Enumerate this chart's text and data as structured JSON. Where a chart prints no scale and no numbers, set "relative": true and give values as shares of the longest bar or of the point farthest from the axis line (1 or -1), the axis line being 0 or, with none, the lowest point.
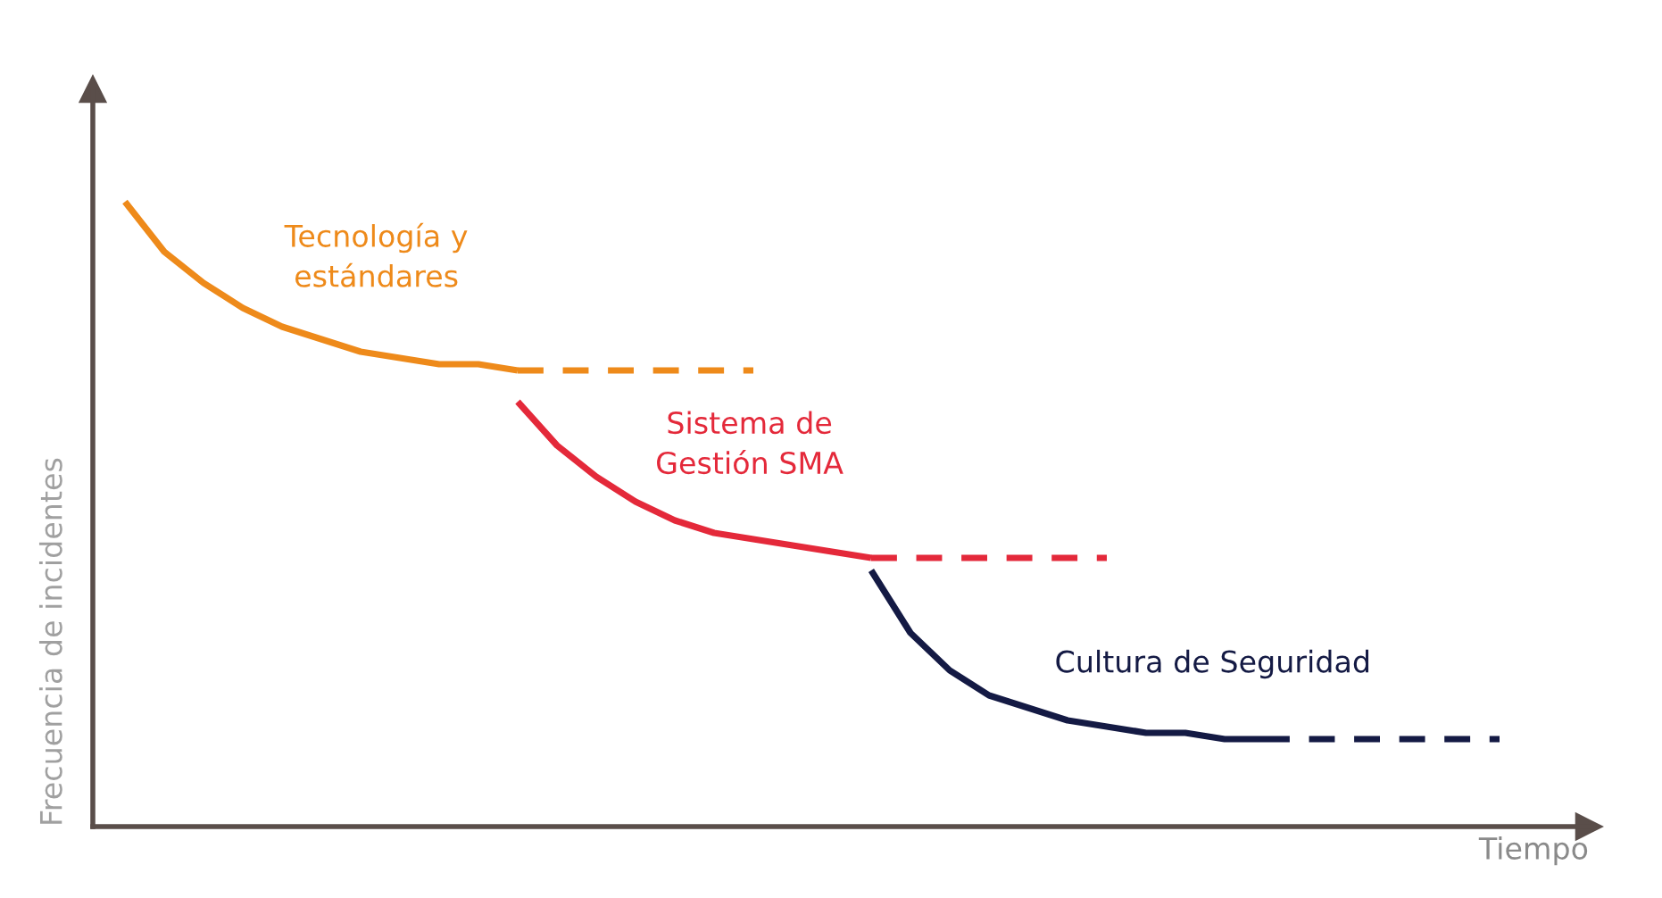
{
  "chart_data": {
    "type": "line",
    "relative": true,
    "xlabel": "Tiempo",
    "ylabel": "Frecuencia de incidentes",
    "categories": [
      null,
      null,
      null,
      null,
      null,
      null,
      null,
      null,
      null,
      null,
      null,
      null,
      null,
      null,
      null,
      null,
      null,
      null,
      null,
      null,
      null,
      null,
      null,
      null,
      null,
      null,
      null,
      null,
      null,
      null,
      null,
      null,
      null,
      null,
      null,
      null
    ],
    "series": [
      {
        "name": "Tecnología y\nestándares",
        "color": "#ee8a1a",
        "line_style": "solid",
        "values": [
          1,
          0.92,
          0.87,
          0.83,
          0.8,
          0.78,
          0.76,
          0.75,
          0.74,
          0.74,
          0.73,
          null,
          null,
          null,
          null,
          null,
          null,
          null,
          null,
          null,
          null,
          null,
          null,
          null,
          null,
          null,
          null,
          null,
          null,
          null,
          null,
          null,
          null,
          null,
          null,
          null
        ]
      },
      {
        "color": "#ee8a1a",
        "line_style": "dashed",
        "values": [
          null,
          null,
          null,
          null,
          null,
          null,
          null,
          null,
          null,
          null,
          0.73,
          0.73,
          0.73,
          0.73,
          0.73,
          0.73,
          0.73,
          null,
          null,
          null,
          null,
          null,
          null,
          null,
          null,
          null,
          null,
          null,
          null,
          null,
          null,
          null,
          null,
          null,
          null,
          null
        ]
      },
      {
        "name": "Sistema de\nGestión SMA",
        "color": "#e4293a",
        "line_style": "solid",
        "values": [
          null,
          null,
          null,
          null,
          null,
          null,
          null,
          null,
          null,
          null,
          0.68,
          0.61,
          0.56,
          0.52,
          0.49,
          0.47,
          0.46,
          0.45,
          0.44,
          0.43,
          null,
          null,
          null,
          null,
          null,
          null,
          null,
          null,
          null,
          null,
          null,
          null,
          null,
          null,
          null,
          null
        ]
      },
      {
        "color": "#e4293a",
        "line_style": "dashed",
        "values": [
          null,
          null,
          null,
          null,
          null,
          null,
          null,
          null,
          null,
          null,
          null,
          null,
          null,
          null,
          null,
          null,
          null,
          null,
          null,
          0.43,
          0.43,
          0.43,
          0.43,
          0.43,
          0.43,
          0.43,
          null,
          null,
          null,
          null,
          null,
          null,
          null,
          null,
          null,
          null
        ]
      },
      {
        "name": "Cultura de Seguridad",
        "color": "#141a44",
        "line_style": "solid",
        "values": [
          null,
          null,
          null,
          null,
          null,
          null,
          null,
          null,
          null,
          null,
          null,
          null,
          null,
          null,
          null,
          null,
          null,
          null,
          null,
          0.41,
          0.31,
          0.25,
          0.21,
          0.19,
          0.17,
          0.16,
          0.15,
          0.15,
          0.14,
          0.14,
          null,
          null,
          null,
          null,
          null,
          null
        ]
      },
      {
        "color": "#141a44",
        "line_style": "dashed",
        "values": [
          null,
          null,
          null,
          null,
          null,
          null,
          null,
          null,
          null,
          null,
          null,
          null,
          null,
          null,
          null,
          null,
          null,
          null,
          null,
          null,
          null,
          null,
          null,
          null,
          null,
          null,
          null,
          null,
          null,
          0.14,
          0.14,
          0.14,
          0.14,
          0.14,
          0.14,
          0.14
        ]
      }
    ],
    "marker": "none",
    "legend": false
  }
}
